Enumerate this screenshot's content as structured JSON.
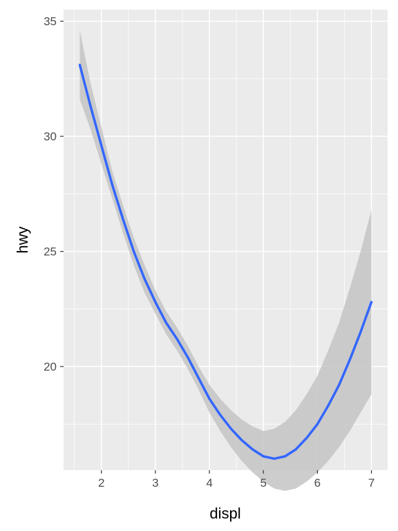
{
  "chart_data": {
    "type": "line",
    "title": "",
    "xlabel": "displ",
    "ylabel": "hwy",
    "xlim": [
      1.3,
      7.3
    ],
    "ylim": [
      15.5,
      35.5
    ],
    "x_ticks": [
      2,
      3,
      4,
      5,
      6,
      7
    ],
    "y_ticks": [
      20,
      25,
      30,
      35
    ],
    "x_tick_labels": [
      "2",
      "3",
      "4",
      "5",
      "6",
      "7"
    ],
    "y_tick_labels": [
      "20",
      "25",
      "30",
      "35"
    ],
    "grid": true,
    "legend": "none",
    "colors": {
      "panel": "#ebebeb",
      "grid": "#ffffff",
      "line": "#3366ff",
      "ribbon": "#c4c4c4",
      "tick": "#333333"
    },
    "series": [
      {
        "type": "smooth",
        "x": [
          1.6,
          1.8,
          2.0,
          2.2,
          2.4,
          2.6,
          2.8,
          3.0,
          3.2,
          3.4,
          3.6,
          3.8,
          4.0,
          4.2,
          4.4,
          4.6,
          4.8,
          5.0,
          5.2,
          5.4,
          5.6,
          5.8,
          6.0,
          6.2,
          6.4,
          6.6,
          6.8,
          7.0
        ],
        "y": [
          33.1,
          31.3,
          29.6,
          27.9,
          26.4,
          25.0,
          23.8,
          22.8,
          21.9,
          21.2,
          20.4,
          19.5,
          18.6,
          17.9,
          17.3,
          16.8,
          16.4,
          16.1,
          16.0,
          16.1,
          16.4,
          16.9,
          17.5,
          18.3,
          19.2,
          20.3,
          21.5,
          22.8
        ],
        "lower": [
          31.6,
          30.3,
          28.8,
          27.3,
          25.8,
          24.4,
          23.2,
          22.3,
          21.4,
          20.7,
          19.9,
          19.0,
          18.0,
          17.2,
          16.5,
          15.9,
          15.4,
          15.0,
          14.7,
          14.6,
          14.7,
          15.0,
          15.4,
          15.9,
          16.5,
          17.2,
          18.0,
          18.8
        ],
        "upper": [
          34.6,
          32.3,
          30.4,
          28.5,
          27.0,
          25.6,
          24.4,
          23.3,
          22.4,
          21.7,
          20.9,
          20.0,
          19.2,
          18.6,
          18.1,
          17.7,
          17.4,
          17.2,
          17.3,
          17.6,
          18.1,
          18.8,
          19.6,
          20.7,
          21.9,
          23.4,
          25.0,
          26.8
        ]
      }
    ]
  }
}
